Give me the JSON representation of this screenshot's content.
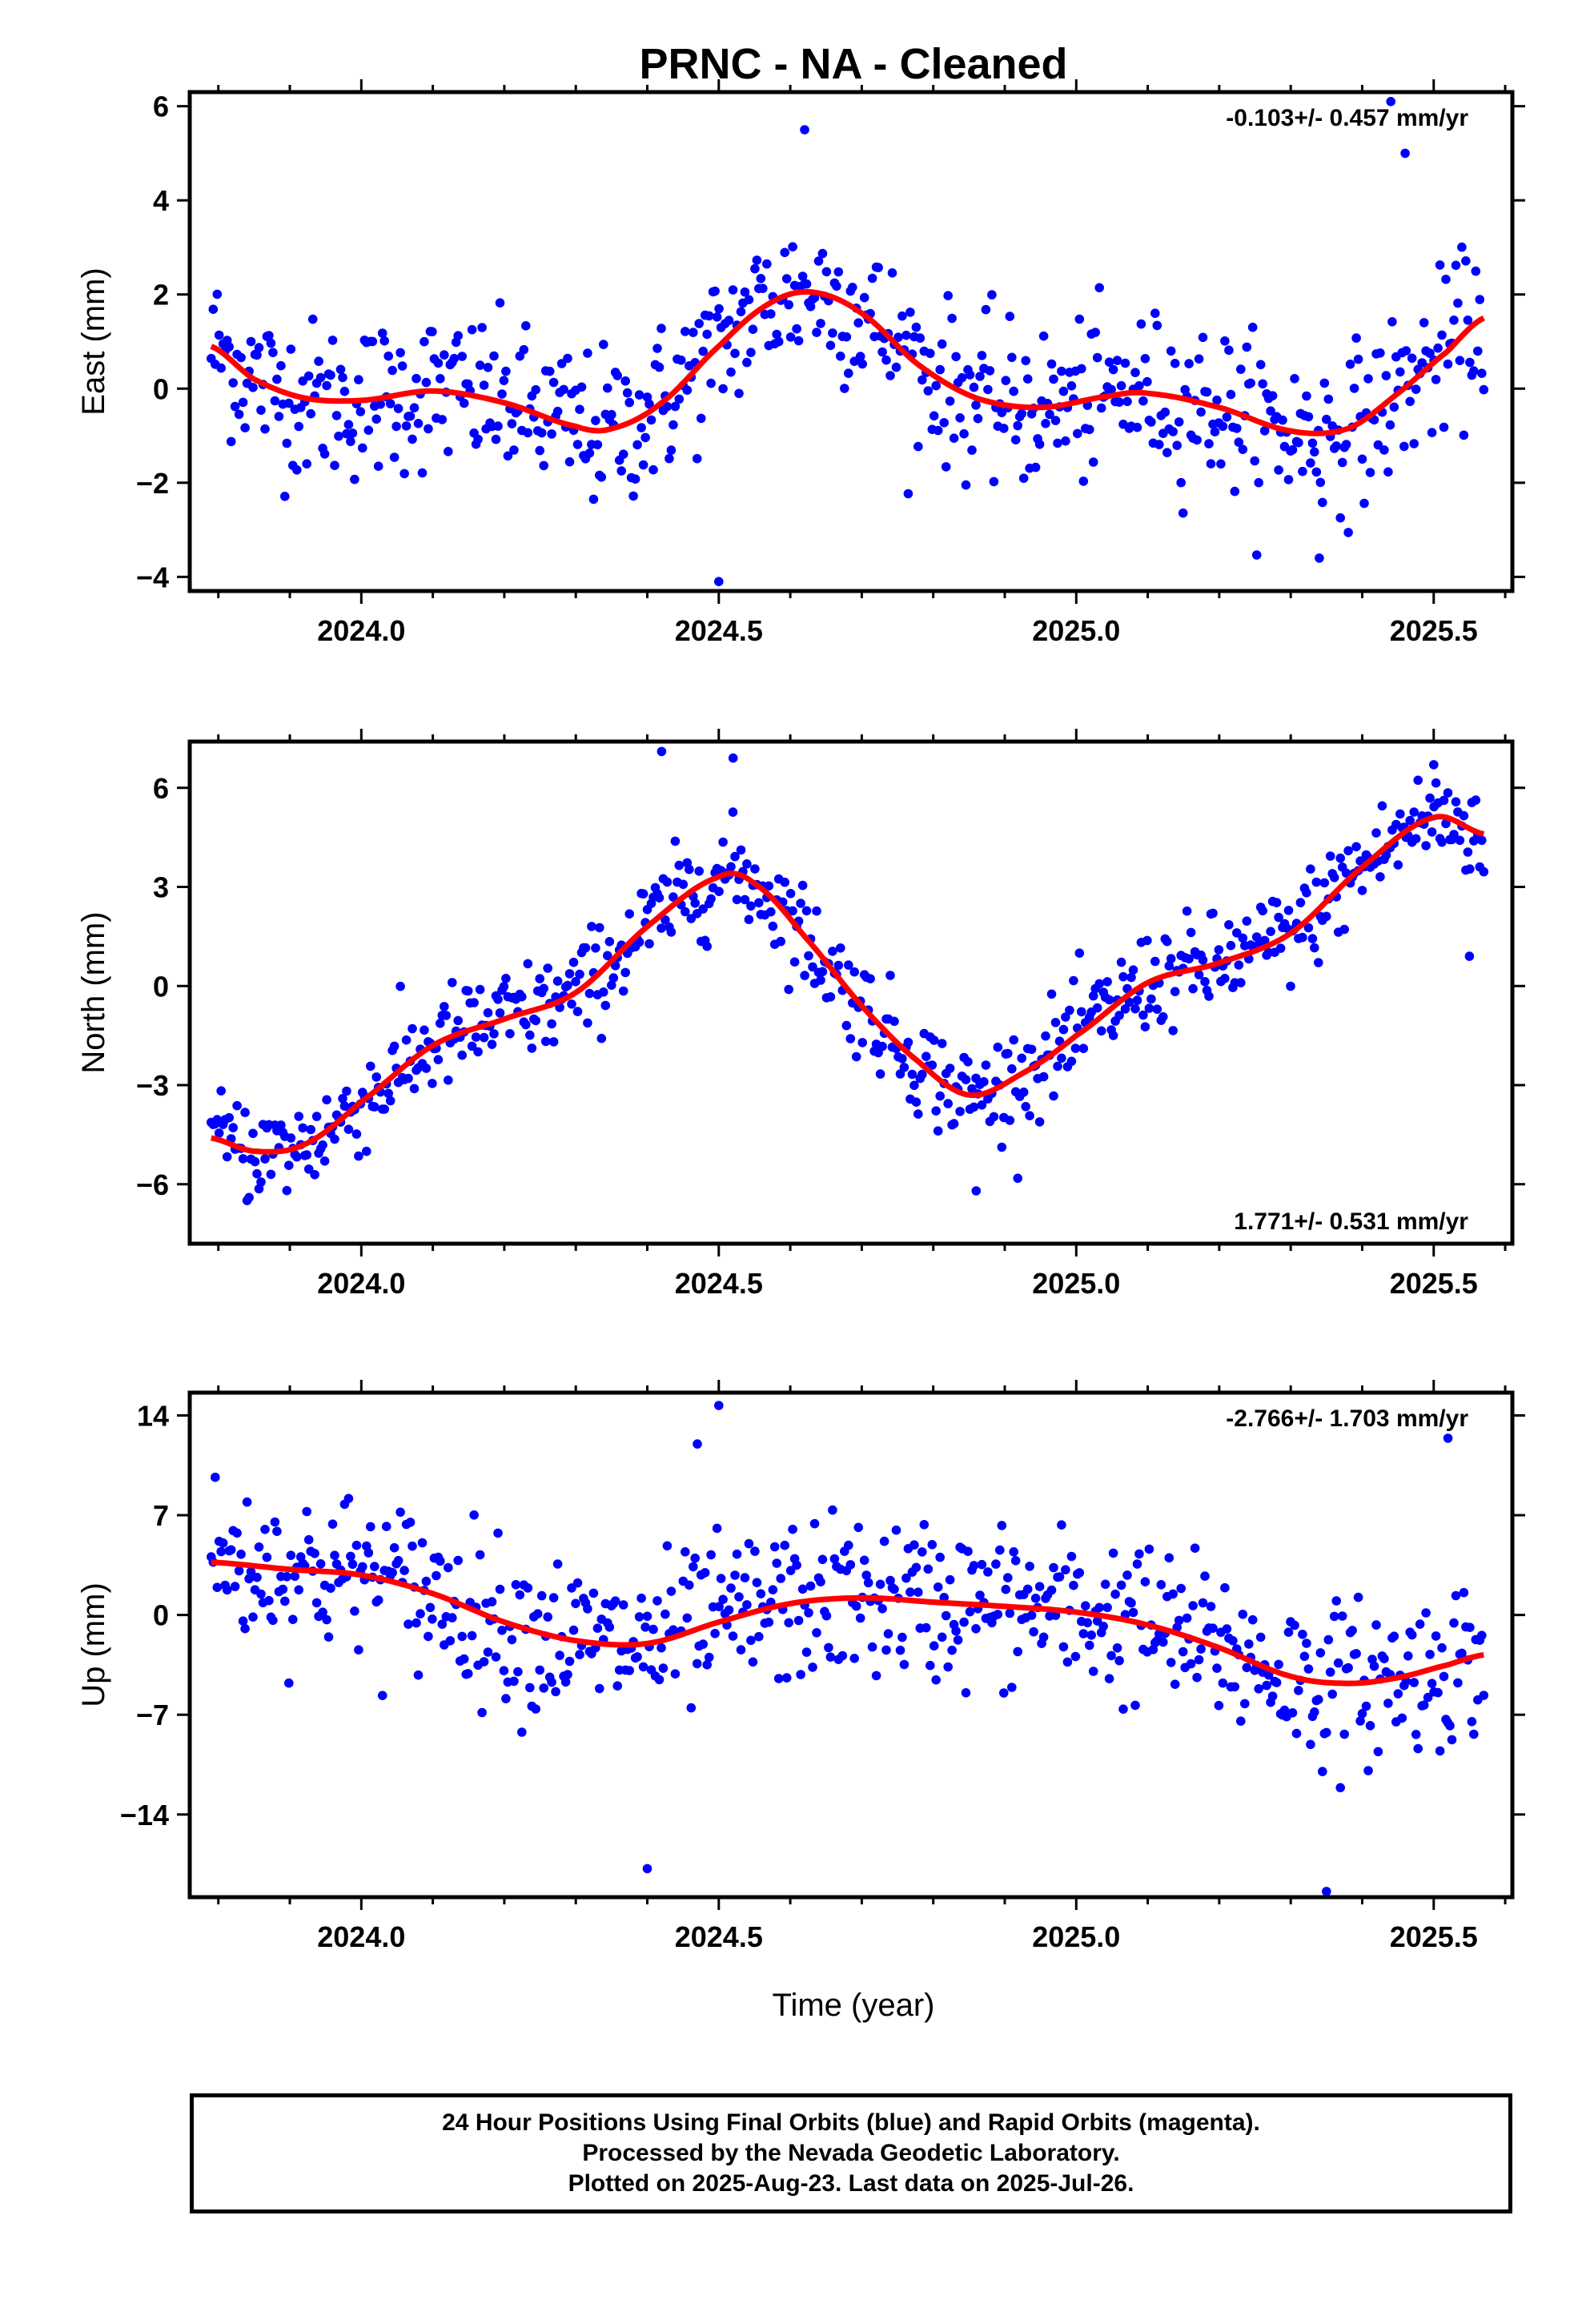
{
  "figure": {
    "title": "PRNC  - NA - Cleaned",
    "xlabel": "Time (year)",
    "footer": [
      "24 Hour Positions Using Final Orbits (blue) and Rapid Orbits (magenta).",
      "Processed by the Nevada Geodetic Laboratory.",
      "Plotted on 2025-Aug-23. Last data on 2025-Jul-26."
    ],
    "colors": {
      "points": "#0000ff",
      "fit": "#ff0000",
      "axes": "#000000"
    }
  },
  "chart_data": [
    {
      "type": "scatter",
      "component": "East",
      "ylabel": "East (mm)",
      "rate_label": "-0.103+/- 0.457 mm/yr",
      "rate_position": "top-right",
      "xlim": [
        2023.76,
        2025.61
      ],
      "ylim": [
        -4.3,
        6.3
      ],
      "xticks": [
        2024.0,
        2024.5,
        2025.0,
        2025.5
      ],
      "xtick_labels": [
        "2024.0",
        "2024.5",
        "2025.0",
        "2025.5"
      ],
      "yticks": [
        -4,
        -2,
        0,
        2,
        4,
        6
      ],
      "ytick_labels": [
        "−4",
        "−2",
        "0",
        "2",
        "4",
        "6"
      ],
      "fit": {
        "x": [
          2023.79,
          2023.85,
          2023.92,
          2024.0,
          2024.1,
          2024.2,
          2024.3,
          2024.35,
          2024.42,
          2024.5,
          2024.57,
          2024.63,
          2024.7,
          2024.78,
          2024.86,
          2024.95,
          2025.05,
          2025.1,
          2025.2,
          2025.3,
          2025.38,
          2025.45,
          2025.52,
          2025.57
        ],
        "y": [
          0.9,
          0.2,
          -0.2,
          -0.25,
          -0.05,
          -0.3,
          -0.8,
          -0.85,
          -0.3,
          0.9,
          1.8,
          2.05,
          1.6,
          0.5,
          -0.2,
          -0.4,
          -0.15,
          -0.1,
          -0.4,
          -0.9,
          -0.85,
          -0.1,
          0.8,
          1.5
        ]
      },
      "noise": 1.2,
      "outliers": {
        "x": [
          2024.5,
          2024.62,
          2025.34,
          2025.44,
          2025.46
        ],
        "y": [
          -4.1,
          5.5,
          -3.6,
          6.1,
          5.0
        ]
      }
    },
    {
      "type": "scatter",
      "component": "North",
      "ylabel": "North (mm)",
      "rate_label": "1.771+/- 0.531 mm/yr",
      "rate_position": "bottom-right",
      "xlim": [
        2023.76,
        2025.61
      ],
      "ylim": [
        -7.8,
        7.4
      ],
      "xticks": [
        2024.0,
        2024.5,
        2025.0,
        2025.5
      ],
      "xtick_labels": [
        "2024.0",
        "2024.5",
        "2025.0",
        "2025.5"
      ],
      "yticks": [
        -6,
        -3,
        0,
        3,
        6
      ],
      "ytick_labels": [
        "−6",
        "−3",
        "0",
        "3",
        "6"
      ],
      "fit": {
        "x": [
          2023.79,
          2023.85,
          2023.92,
          2024.0,
          2024.1,
          2024.2,
          2024.3,
          2024.4,
          2024.5,
          2024.55,
          2024.62,
          2024.7,
          2024.78,
          2024.85,
          2024.92,
          2025.0,
          2025.1,
          2025.2,
          2025.3,
          2025.4,
          2025.5,
          2025.57
        ],
        "y": [
          -4.6,
          -5.0,
          -4.8,
          -3.5,
          -1.8,
          -1.0,
          -0.2,
          1.8,
          3.3,
          3.1,
          1.5,
          -0.6,
          -2.3,
          -3.3,
          -2.7,
          -1.5,
          0.1,
          0.7,
          1.6,
          3.6,
          5.1,
          4.6
        ]
      },
      "noise": 1.1,
      "outliers": {
        "x": [
          2024.42,
          2024.52,
          2024.86,
          2025.5,
          2025.55
        ],
        "y": [
          7.1,
          6.9,
          -6.2,
          6.7,
          0.9
        ]
      }
    },
    {
      "type": "scatter",
      "component": "Up",
      "ylabel": "Up (mm)",
      "rate_label": "-2.766+/- 1.703 mm/yr",
      "rate_position": "top-right",
      "xlim": [
        2023.76,
        2025.61
      ],
      "ylim": [
        -19.8,
        15.6
      ],
      "xticks": [
        2024.0,
        2024.5,
        2025.0,
        2025.5
      ],
      "xtick_labels": [
        "2024.0",
        "2024.5",
        "2025.0",
        "2025.5"
      ],
      "yticks": [
        -14,
        -7,
        0,
        7,
        14
      ],
      "ytick_labels": [
        "−14",
        "−7",
        "0",
        "7",
        "14"
      ],
      "fit": {
        "x": [
          2023.79,
          2023.9,
          2024.0,
          2024.1,
          2024.2,
          2024.3,
          2024.4,
          2024.5,
          2024.6,
          2024.7,
          2024.8,
          2024.9,
          2025.0,
          2025.1,
          2025.2,
          2025.3,
          2025.38,
          2025.45,
          2025.52,
          2025.57
        ],
        "y": [
          3.7,
          3.2,
          2.8,
          1.5,
          -0.5,
          -1.8,
          -2.0,
          -0.5,
          0.8,
          1.2,
          0.9,
          0.6,
          0.2,
          -0.7,
          -2.3,
          -4.3,
          -4.8,
          -4.4,
          -3.5,
          -2.8
        ]
      },
      "noise": 4.0,
      "outliers": {
        "x": [
          2024.4,
          2024.5,
          2025.35,
          2025.52,
          2024.47
        ],
        "y": [
          -17.8,
          14.7,
          -19.4,
          12.4,
          12.0
        ]
      }
    }
  ]
}
